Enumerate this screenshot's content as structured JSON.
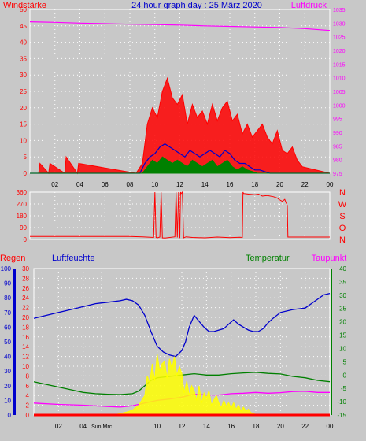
{
  "header": {
    "title": "24 hour graph day : 25 März 2020",
    "left_label": "Windstärke",
    "right_label": "Luftdruck"
  },
  "bottom_header": {
    "regen": "Regen",
    "luftfeuchte": "Luftfeuchte",
    "temperatur": "Temperatur",
    "taupunkt": "Taupunkt"
  },
  "colors": {
    "background": "#c8c8c8",
    "wind_gust": "#ff0000",
    "wind_avg": "#0000cc",
    "wind_mean": "#008000",
    "pressure": "#ff00ff",
    "direction": "#ff0000",
    "humidity": "#0000cc",
    "temperature": "#008000",
    "dewpoint": "#ff00ff",
    "solar": "#ffff00",
    "rain": "#ff0000",
    "title": "#0000cc"
  },
  "chart_data": [
    {
      "type": "line",
      "title": "24 hour graph day : 25 März 2020",
      "ylabel": "Windstärke",
      "y2label": "Luftdruck",
      "x_ticks": [
        "02",
        "04",
        "06",
        "08",
        "10",
        "12",
        "14",
        "16",
        "18",
        "20",
        "22",
        "00"
      ],
      "y_ticks": [
        "0",
        "5",
        "10",
        "15",
        "20",
        "25",
        "30",
        "35",
        "40",
        "45",
        "50"
      ],
      "y2_ticks": [
        "975",
        "980",
        "985",
        "990",
        "995",
        "1000",
        "1005",
        "1010",
        "1015",
        "1020",
        "1025",
        "1030",
        "1035"
      ],
      "xlim": [
        0,
        24
      ],
      "ylim": [
        0,
        50
      ],
      "y2lim": [
        975,
        1035
      ],
      "series": [
        {
          "name": "Luftdruck",
          "axis": "right",
          "x": [
            0,
            2,
            4,
            6,
            8,
            10,
            12,
            14,
            16,
            18,
            20,
            22,
            24
          ],
          "values": [
            1030.5,
            1030.3,
            1030.0,
            1029.8,
            1029.6,
            1029.5,
            1029.3,
            1029.0,
            1028.8,
            1028.6,
            1028.4,
            1028.0,
            1027.3
          ]
        },
        {
          "name": "gust",
          "axis": "left",
          "x": [
            0,
            0.7,
            0.8,
            1.5,
            1.6,
            2.8,
            2.9,
            3.8,
            3.9,
            8.5,
            9.0,
            9.4,
            9.8,
            10.2,
            10.6,
            11.0,
            11.4,
            11.8,
            12.2,
            12.6,
            13.0,
            13.4,
            13.8,
            14.2,
            14.6,
            15.0,
            15.4,
            15.8,
            16.2,
            16.6,
            17.0,
            17.4,
            17.8,
            18.2,
            18.6,
            19.0,
            19.4,
            19.8,
            20.2,
            20.6,
            21.0,
            21.4,
            21.8,
            24
          ],
          "values": [
            0,
            0,
            3,
            0,
            3,
            0,
            5,
            0,
            3,
            0,
            3,
            15,
            20,
            17,
            25,
            29,
            23,
            21,
            24,
            15,
            21,
            17,
            19,
            15,
            21,
            16,
            20,
            22,
            16,
            18,
            12,
            15,
            11,
            13,
            15,
            11,
            9,
            13,
            7,
            6,
            8,
            4,
            2,
            0
          ]
        },
        {
          "name": "avg",
          "axis": "left",
          "x": [
            0,
            8.8,
            9.2,
            9.6,
            10.0,
            10.4,
            10.8,
            11.2,
            11.6,
            12.0,
            12.4,
            12.8,
            13.2,
            13.6,
            14.0,
            14.4,
            14.8,
            15.2,
            15.6,
            16.0,
            16.4,
            16.8,
            17.2,
            17.6,
            18.0,
            18.4,
            18.8,
            19.2,
            24
          ],
          "values": [
            0,
            0,
            3,
            5,
            6,
            8,
            9,
            8,
            7,
            6,
            5,
            7,
            6,
            5,
            6,
            7,
            6,
            5,
            7,
            6,
            4,
            3,
            3,
            2,
            1,
            1,
            0.5,
            0,
            0
          ]
        },
        {
          "name": "mean",
          "axis": "left",
          "x": [
            0,
            9.0,
            9.4,
            9.8,
            10.2,
            10.6,
            11.0,
            11.4,
            11.8,
            12.2,
            12.6,
            13.0,
            13.4,
            13.8,
            14.2,
            14.6,
            15.0,
            15.4,
            15.8,
            16.2,
            16.6,
            17.0,
            17.4,
            17.8,
            18.2,
            24
          ],
          "values": [
            0,
            0,
            2,
            4,
            3,
            5,
            4,
            3,
            4,
            3,
            2,
            4,
            3,
            2,
            3,
            4,
            2,
            3,
            4,
            2,
            1,
            2,
            1,
            0.5,
            0,
            0
          ]
        }
      ]
    },
    {
      "type": "line",
      "ylabel": "",
      "y_ticks": [
        "0",
        "90",
        "180",
        "270",
        "360"
      ],
      "y_labels_right": [
        "N",
        "W",
        "S",
        "O",
        "N"
      ],
      "x_ticks": [
        "02",
        "04",
        "06",
        "08",
        "10",
        "12",
        "14",
        "16",
        "18",
        "20",
        "22",
        "00"
      ],
      "xlim": [
        0,
        24
      ],
      "ylim": [
        0,
        360
      ],
      "series": [
        {
          "name": "direction",
          "x": [
            0,
            8.0,
            9.0,
            9.9,
            10.0,
            10.1,
            10.2,
            10.4,
            10.5,
            10.6,
            10.8,
            11.2,
            11.6,
            11.7,
            11.8,
            11.9,
            12.0,
            12.05,
            12.1,
            12.2,
            12.3,
            12.5,
            13.0,
            14.0,
            15.0,
            16.0,
            16.8,
            17.0,
            17.05,
            17.1,
            17.5,
            18.0,
            18.3,
            18.6,
            19.0,
            19.5,
            19.8,
            20.0,
            20.2,
            20.4,
            20.5,
            20.6,
            20.65,
            24
          ],
          "values": [
            22,
            22,
            20,
            15,
            360,
            15,
            12,
            18,
            360,
            12,
            10,
            15,
            20,
            360,
            15,
            360,
            10,
            360,
            350,
            360,
            12,
            20,
            15,
            12,
            18,
            14,
            16,
            15,
            360,
            350,
            345,
            340,
            345,
            330,
            335,
            325,
            315,
            300,
            290,
            305,
            280,
            260,
            18,
            18
          ]
        }
      ]
    },
    {
      "type": "line",
      "x_ticks": [
        "02",
        "04",
        "Sun Mrc",
        "10",
        "12",
        "14",
        "16",
        "18",
        "20",
        "22",
        "00"
      ],
      "xlim": [
        0,
        24
      ],
      "axes": {
        "luftfeuchte": {
          "ticks": [
            "0",
            "10",
            "20",
            "30",
            "40",
            "50",
            "60",
            "70",
            "80",
            "90",
            "100"
          ],
          "lim": [
            0,
            100
          ]
        },
        "regen": {
          "ticks": [
            "0",
            "2",
            "4",
            "6",
            "8",
            "10",
            "12",
            "14",
            "16",
            "18",
            "20",
            "22",
            "24",
            "26",
            "28",
            "30"
          ],
          "lim": [
            0,
            30
          ]
        },
        "temperatur": {
          "ticks": [
            "-15",
            "-10",
            "-5",
            "0",
            "5",
            "10",
            "15",
            "20",
            "25",
            "30",
            "35",
            "40"
          ],
          "lim": [
            -15,
            40
          ]
        }
      },
      "series": [
        {
          "name": "Luftfeuchte",
          "axis": "luftfeuchte",
          "x": [
            0,
            1,
            2,
            3,
            4,
            5,
            6,
            7,
            7.5,
            8,
            8.5,
            9,
            9.5,
            10,
            10.5,
            11,
            11.5,
            12,
            12.3,
            12.6,
            13,
            13.4,
            13.8,
            14.2,
            14.6,
            15,
            15.4,
            15.8,
            16.2,
            16.6,
            17,
            17.4,
            17.8,
            18.2,
            18.6,
            19,
            19.4,
            20,
            21,
            22,
            22.5,
            23,
            23.5,
            24
          ],
          "values": [
            66,
            68,
            70,
            72,
            74,
            76,
            77,
            78,
            79,
            78,
            75,
            68,
            57,
            47,
            43,
            41,
            40,
            44,
            50,
            60,
            68,
            64,
            60,
            57,
            57,
            58,
            59,
            62,
            65,
            62,
            60,
            58,
            57,
            57,
            59,
            63,
            66,
            70,
            72,
            73,
            76,
            79,
            82,
            83
          ]
        },
        {
          "name": "Temperatur",
          "axis": "temperatur",
          "x": [
            0,
            1,
            2,
            3,
            4,
            5,
            6,
            7,
            8,
            8.5,
            9,
            9.5,
            10,
            11,
            12,
            13,
            14,
            15,
            16,
            17,
            18,
            19,
            20,
            21,
            22,
            23,
            24
          ],
          "values": [
            -2.5,
            -3.5,
            -4.5,
            -5.5,
            -6.5,
            -7,
            -7.2,
            -7.3,
            -7,
            -6,
            -4,
            -2,
            -1,
            -0.5,
            0,
            0.5,
            0,
            0,
            0.5,
            0.8,
            1,
            0.6,
            0.4,
            -0.5,
            -1,
            -2,
            -2.5
          ]
        },
        {
          "name": "Taupunkt",
          "axis": "temperatur",
          "x": [
            0,
            2,
            4,
            6,
            7,
            8,
            9,
            10,
            11,
            12,
            13,
            14,
            15,
            16,
            17,
            18,
            19,
            20,
            21,
            22,
            23,
            24
          ],
          "values": [
            -10.5,
            -11,
            -11.3,
            -11.8,
            -12,
            -11.5,
            -10.5,
            -9.5,
            -9,
            -8.3,
            -7.2,
            -7.5,
            -7.5,
            -7,
            -6.8,
            -6.5,
            -6.8,
            -6.6,
            -6.2,
            -6.1,
            -6.5,
            -6.5
          ]
        },
        {
          "name": "solar",
          "axis": "regen",
          "x": [
            6.5,
            7,
            7.5,
            8,
            8.5,
            9,
            9.2,
            9.4,
            9.6,
            9.8,
            10,
            10.2,
            10.4,
            10.6,
            10.8,
            11,
            11.2,
            11.4,
            11.6,
            11.8,
            12,
            12.2,
            12.4,
            12.6,
            12.8,
            13,
            13.2,
            13.4,
            13.6,
            13.8,
            14,
            14.2,
            14.4,
            14.6,
            14.8,
            15,
            15.2,
            15.4,
            15.6,
            15.8,
            16,
            16.2,
            16.4,
            16.6,
            16.8,
            17,
            17.2,
            17.4,
            17.6,
            17.8,
            18,
            18.2
          ],
          "values": [
            0,
            0.3,
            0.6,
            1.0,
            2.0,
            4.0,
            8.0,
            6.5,
            10.5,
            7.0,
            12.5,
            9.0,
            10.5,
            11.0,
            7.5,
            11.5,
            9.5,
            12.0,
            8.0,
            10.0,
            8.5,
            4.5,
            7.0,
            4.0,
            6.0,
            5.0,
            3.0,
            6.0,
            2.5,
            4.5,
            3.5,
            5.0,
            2.0,
            3.0,
            4.0,
            2.5,
            1.5,
            3.0,
            1.8,
            2.5,
            1.5,
            2.5,
            1.2,
            2.0,
            0.8,
            1.6,
            0.8,
            1.2,
            0.5,
            0.3,
            0.1,
            0
          ]
        },
        {
          "name": "Regen",
          "axis": "regen",
          "x": [
            0,
            24
          ],
          "values": [
            0,
            0
          ]
        }
      ]
    }
  ]
}
